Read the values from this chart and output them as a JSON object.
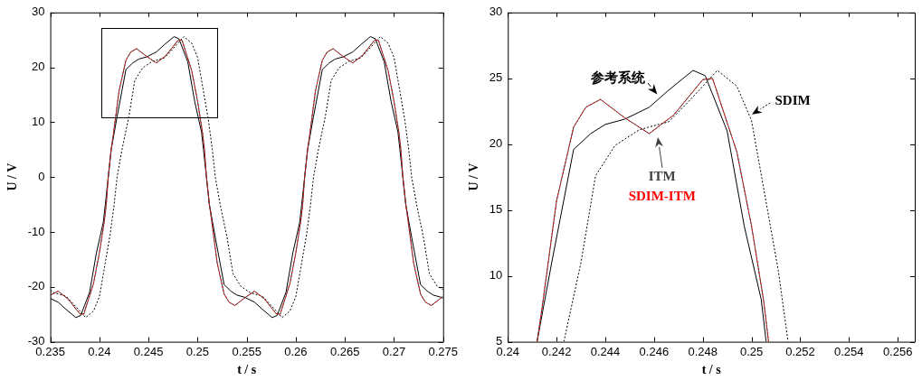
{
  "chart_data": [
    {
      "type": "line",
      "xlabel": "t / s",
      "ylabel": "U / V",
      "xlim": [
        0.235,
        0.275
      ],
      "ylim": [
        -30,
        30
      ],
      "xticks": [
        0.235,
        0.24,
        0.245,
        0.25,
        0.255,
        0.26,
        0.265,
        0.27,
        0.275
      ],
      "yticks": [
        -30,
        -20,
        -10,
        0,
        10,
        20,
        30
      ],
      "series": [
        {
          "color": "#000000",
          "line_style": "solid",
          "x": [
            0.235,
            0.2358,
            0.2366,
            0.2376,
            0.2381,
            0.239,
            0.2397,
            0.2404,
            0.2406,
            0.2409,
            0.2412,
            0.2418,
            0.2427,
            0.2434,
            0.244,
            0.2448,
            0.2458,
            0.2466,
            0.2476,
            0.2481,
            0.249,
            0.2497,
            0.2504,
            0.2506,
            0.2509,
            0.2512,
            0.2518,
            0.2527,
            0.2534,
            0.254,
            0.2548,
            0.2558,
            0.2566,
            0.2576,
            0.2581,
            0.259,
            0.2597,
            0.2604,
            0.2606,
            0.2609,
            0.2612,
            0.2618,
            0.2627,
            0.2634,
            0.264,
            0.2648,
            0.2658,
            0.2666,
            0.2676,
            0.2681,
            0.269,
            0.2697,
            0.2704,
            0.2706,
            0.2709,
            0.2712,
            0.2718,
            0.2727,
            0.2734,
            0.274,
            0.2748,
            0.275
          ],
          "values": [
            -22.1,
            -22.8,
            -24.1,
            -25.6,
            -25.2,
            -21,
            -13.8,
            -8.2,
            -5,
            0,
            5,
            11,
            19.6,
            20.8,
            21.5,
            21.9,
            22.8,
            24.1,
            25.6,
            25.2,
            21,
            13.8,
            8.2,
            5,
            0,
            -5,
            -11,
            -19.6,
            -20.8,
            -21.5,
            -21.9,
            -22.8,
            -24.1,
            -25.6,
            -25.2,
            -21,
            -13.8,
            -8.2,
            -5,
            0,
            5,
            11,
            19.6,
            20.8,
            21.5,
            21.9,
            22.8,
            24.1,
            25.6,
            25.2,
            21,
            13.8,
            8.2,
            5,
            0,
            -5,
            -11,
            -19.6,
            -20.8,
            -21.5,
            -21.9,
            -22.1
          ]
        },
        {
          "color": "#404040",
          "line_style": "solid",
          "x": [
            0.235,
            0.2358,
            0.2368,
            0.238,
            0.2384,
            0.2394,
            0.24,
            0.2405,
            0.2407,
            0.2409,
            0.2412,
            0.2414,
            0.242,
            0.2427,
            0.2432,
            0.2438,
            0.2448,
            0.2458,
            0.2468,
            0.248,
            0.2484,
            0.2494,
            0.25,
            0.2505,
            0.2507,
            0.2509,
            0.2512,
            0.2514,
            0.252,
            0.2527,
            0.2532,
            0.2538,
            0.2548,
            0.2558,
            0.2568,
            0.258,
            0.2584,
            0.2594,
            0.26,
            0.2605,
            0.2607,
            0.2609,
            0.2612,
            0.2614,
            0.262,
            0.2627,
            0.2632,
            0.2638,
            0.2648,
            0.2658,
            0.2668,
            0.268,
            0.2684,
            0.2694,
            0.27,
            0.2705,
            0.2707,
            0.2709,
            0.2712,
            0.2714,
            0.272,
            0.2727,
            0.2732,
            0.2738,
            0.2748,
            0.275
          ],
          "values": [
            -21.5,
            -20.8,
            -22.2,
            -24.9,
            -25,
            -19.4,
            -13.8,
            -8.1,
            -5,
            0,
            5,
            7.5,
            15.7,
            21.3,
            22.8,
            23.4,
            22,
            20.8,
            22.2,
            24.9,
            25,
            19.4,
            13.8,
            8.1,
            5,
            0,
            -5,
            -7.5,
            -15.7,
            -21.3,
            -22.8,
            -23.4,
            -22,
            -20.8,
            -22.2,
            -24.9,
            -25,
            -19.4,
            -13.8,
            -8.1,
            -5,
            0,
            5,
            7.5,
            15.7,
            21.3,
            22.8,
            23.4,
            22,
            20.8,
            22.2,
            24.9,
            25,
            19.4,
            13.8,
            8.1,
            5,
            0,
            -5,
            -7.5,
            -15.7,
            -21.3,
            -22.8,
            -23.4,
            -22,
            -21.7
          ]
        },
        {
          "color": "#000000",
          "line_style": "dashed",
          "x": [
            0.235,
            0.2354,
            0.2366,
            0.2374,
            0.2381,
            0.2386,
            0.2394,
            0.24,
            0.2406,
            0.2411,
            0.2415,
            0.2418,
            0.2423,
            0.243,
            0.2436,
            0.2444,
            0.2454,
            0.2466,
            0.2474,
            0.2481,
            0.2486,
            0.2494,
            0.25,
            0.2506,
            0.2511,
            0.2515,
            0.2518,
            0.2523,
            0.253,
            0.2536,
            0.2544,
            0.2554,
            0.2566,
            0.2574,
            0.2581,
            0.2586,
            0.2594,
            0.26,
            0.2606,
            0.2611,
            0.2615,
            0.2618,
            0.2623,
            0.263,
            0.2636,
            0.2644,
            0.2654,
            0.2666,
            0.2674,
            0.2681,
            0.2686,
            0.2694,
            0.27,
            0.2706,
            0.2711,
            0.2715,
            0.2718,
            0.2723,
            0.273,
            0.2736,
            0.2744,
            0.275
          ],
          "values": [
            -20.6,
            -21.1,
            -21.7,
            -23.2,
            -24.6,
            -25.6,
            -24.4,
            -21.8,
            -15.6,
            -10.4,
            -5,
            0,
            5,
            11,
            17.6,
            19.9,
            21.1,
            21.7,
            23.2,
            24.6,
            25.6,
            24.4,
            21.8,
            15.6,
            10.4,
            5,
            0,
            -5,
            -11,
            -17.6,
            -19.9,
            -21.1,
            -21.7,
            -23.2,
            -24.6,
            -25.6,
            -24.4,
            -21.8,
            -15.6,
            -10.4,
            -5,
            0,
            5,
            11,
            17.6,
            19.9,
            21.1,
            21.7,
            23.2,
            24.6,
            25.6,
            24.4,
            21.8,
            15.6,
            10.4,
            5,
            0,
            -5,
            -11,
            -17.6,
            -19.9,
            -20.5
          ]
        },
        {
          "color": "#ff0000",
          "line_style": "dashed",
          "x": [
            0.235,
            0.2358,
            0.2368,
            0.238,
            0.2384,
            0.2394,
            0.24,
            0.2405,
            0.2407,
            0.2409,
            0.2412,
            0.2414,
            0.242,
            0.2427,
            0.2432,
            0.2438,
            0.2448,
            0.2458,
            0.2468,
            0.248,
            0.2484,
            0.2494,
            0.25,
            0.2505,
            0.2507,
            0.2509,
            0.2512,
            0.2514,
            0.252,
            0.2527,
            0.2532,
            0.2538,
            0.2548,
            0.2558,
            0.2568,
            0.258,
            0.2584,
            0.2594,
            0.26,
            0.2605,
            0.2607,
            0.2609,
            0.2612,
            0.2614,
            0.262,
            0.2627,
            0.2632,
            0.2638,
            0.2648,
            0.2658,
            0.2668,
            0.268,
            0.2684,
            0.2694,
            0.27,
            0.2705,
            0.2707,
            0.2709,
            0.2712,
            0.2714,
            0.272,
            0.2727,
            0.2732,
            0.2738,
            0.2748,
            0.275
          ],
          "values": [
            -21.5,
            -20.8,
            -22.2,
            -24.9,
            -25,
            -19.4,
            -13.8,
            -8.1,
            -5,
            0,
            5,
            7.5,
            15.7,
            21.3,
            22.8,
            23.4,
            22,
            20.8,
            22.2,
            24.9,
            25,
            19.4,
            13.8,
            8.1,
            5,
            0,
            -5,
            -7.5,
            -15.7,
            -21.3,
            -22.8,
            -23.4,
            -22,
            -20.8,
            -22.2,
            -24.9,
            -25,
            -19.4,
            -13.8,
            -8.1,
            -5,
            0,
            5,
            7.5,
            15.7,
            21.3,
            22.8,
            23.4,
            22,
            20.8,
            22.2,
            24.9,
            25,
            19.4,
            13.8,
            8.1,
            5,
            0,
            -5,
            -7.5,
            -15.7,
            -21.3,
            -22.8,
            -23.4,
            -22,
            -21.7
          ]
        }
      ]
    },
    {
      "type": "line",
      "xlabel": "t / s",
      "ylabel": "U / V",
      "xlim": [
        0.24,
        0.2567
      ],
      "ylim": [
        5,
        30
      ],
      "xticks": [
        0.24,
        0.242,
        0.244,
        0.246,
        0.248,
        0.25,
        0.252,
        0.254,
        0.256
      ],
      "yticks": [
        5,
        10,
        15,
        20,
        25,
        30
      ],
      "series": [
        {
          "name": "参考系统",
          "color": "#000000",
          "line_style": "solid",
          "x": [
            0.2412,
            0.2418,
            0.2427,
            0.2434,
            0.244,
            0.2448,
            0.2458,
            0.2466,
            0.2476,
            0.2481,
            0.249,
            0.2497,
            0.2504,
            0.2506
          ],
          "values": [
            5,
            11,
            19.6,
            20.8,
            21.5,
            21.9,
            22.8,
            24.1,
            25.6,
            25.2,
            21,
            13.8,
            8.2,
            5
          ]
        },
        {
          "name": "ITM",
          "color": "#404040",
          "line_style": "solid",
          "x": [
            0.2412,
            0.2414,
            0.242,
            0.2427,
            0.2432,
            0.2438,
            0.2448,
            0.2458,
            0.2468,
            0.248,
            0.2484,
            0.2494,
            0.25,
            0.2505,
            0.2507
          ],
          "values": [
            5,
            7.5,
            15.7,
            21.3,
            22.8,
            23.4,
            22,
            20.8,
            22.2,
            24.9,
            25,
            19.4,
            13.8,
            8.1,
            5
          ]
        },
        {
          "name": "SDIM",
          "color": "#000000",
          "line_style": "dashed",
          "x": [
            0.2423,
            0.243,
            0.2436,
            0.2444,
            0.2454,
            0.2466,
            0.2474,
            0.2481,
            0.2486,
            0.2494,
            0.25,
            0.2506,
            0.2511,
            0.2515
          ],
          "values": [
            5,
            11,
            17.6,
            19.9,
            21.1,
            21.7,
            23.2,
            24.6,
            25.6,
            24.4,
            21.8,
            15.6,
            10.4,
            5
          ]
        },
        {
          "name": "SDIM-ITM",
          "color": "#ff0000",
          "line_style": "dashed",
          "x": [
            0.2412,
            0.2414,
            0.242,
            0.2427,
            0.2432,
            0.2438,
            0.2448,
            0.2458,
            0.2468,
            0.248,
            0.2484,
            0.2494,
            0.25,
            0.2505,
            0.2507
          ],
          "values": [
            5,
            7.5,
            15.7,
            21.3,
            22.8,
            23.4,
            22,
            20.8,
            22.2,
            24.9,
            25,
            19.4,
            13.8,
            8.1,
            5
          ]
        }
      ]
    }
  ]
}
